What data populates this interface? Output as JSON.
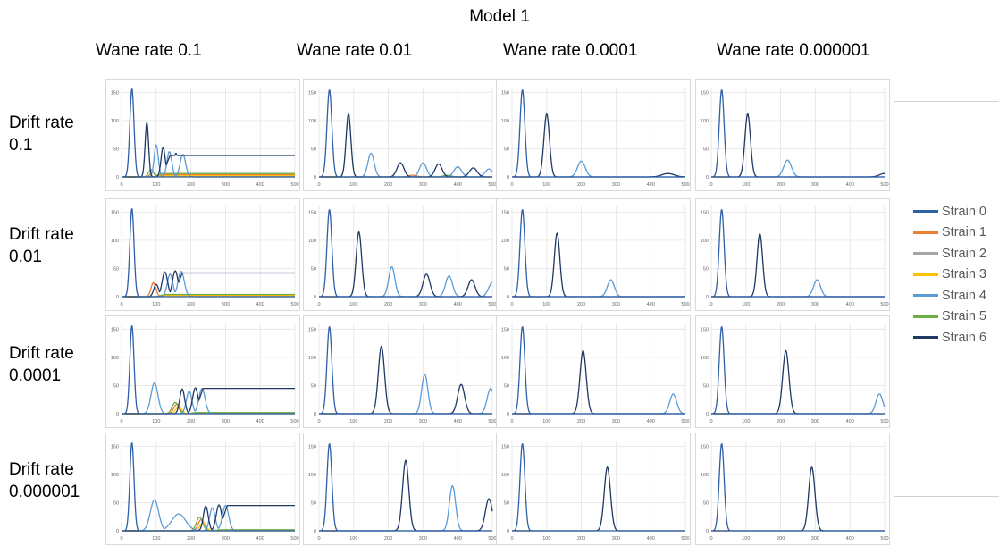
{
  "figure": {
    "title": "Model 1",
    "column_headers": [
      "Wane rate 0.1",
      "Wane rate 0.01",
      "Wane rate 0.0001",
      "Wane rate 0.000001"
    ],
    "row_headers": [
      [
        "Drift rate",
        "0.1"
      ],
      [
        "Drift rate",
        "0.01"
      ],
      [
        "Drift rate",
        "0.0001"
      ],
      [
        "Drift rate",
        "0.000001"
      ]
    ]
  },
  "legend": {
    "entries": [
      {
        "label": "Strain 0",
        "color": "#2e5fa8"
      },
      {
        "label": "Strain 1",
        "color": "#ed7d31"
      },
      {
        "label": "Strain 2",
        "color": "#a5a5a5"
      },
      {
        "label": "Strain 3",
        "color": "#ffc000"
      },
      {
        "label": "Strain 4",
        "color": "#5b9bd5"
      },
      {
        "label": "Strain 5",
        "color": "#70ad47"
      },
      {
        "label": "Strain 6",
        "color": "#1f3864"
      }
    ]
  },
  "chart_data": {
    "type": "line",
    "xlim": [
      0,
      500
    ],
    "ylim": [
      0,
      160
    ],
    "xticks": [
      0,
      100,
      200,
      300,
      400,
      500
    ],
    "yticks": [
      0,
      50,
      100,
      150
    ],
    "grid": true,
    "legend_position": "right",
    "series_names": [
      "Strain 0",
      "Strain 1",
      "Strain 2",
      "Strain 3",
      "Strain 4",
      "Strain 5",
      "Strain 6"
    ],
    "panels": [
      {
        "drift": "0.1",
        "wane": "0.1",
        "peaks": [
          {
            "s": 0,
            "x": 30,
            "h": 157,
            "w": 6
          },
          {
            "s": 6,
            "x": 73,
            "h": 97,
            "w": 5
          },
          {
            "s": 4,
            "x": 100,
            "h": 57,
            "w": 6
          },
          {
            "s": 6,
            "x": 120,
            "h": 53,
            "w": 6
          },
          {
            "s": 4,
            "x": 138,
            "h": 45,
            "w": 7
          },
          {
            "s": 6,
            "x": 157,
            "h": 42,
            "w": 7
          },
          {
            "s": 4,
            "x": 177,
            "h": 40,
            "w": 8
          },
          {
            "s": 5,
            "x": 85,
            "h": 13,
            "w": 7
          },
          {
            "s": 1,
            "x": 90,
            "h": 9,
            "w": 7
          }
        ],
        "plateaus": [
          {
            "s": 6,
            "x0": 115,
            "x1": 500,
            "v": 38
          },
          {
            "s": 5,
            "x0": 90,
            "x1": 500,
            "v": 6
          },
          {
            "s": 1,
            "x0": 95,
            "x1": 500,
            "v": 4
          },
          {
            "s": 3,
            "x0": 95,
            "x1": 500,
            "v": 2
          },
          {
            "s": 2,
            "x0": 95,
            "x1": 500,
            "v": 1.5
          }
        ]
      },
      {
        "drift": "0.1",
        "wane": "0.01",
        "peaks": [
          {
            "s": 0,
            "x": 30,
            "h": 155,
            "w": 7
          },
          {
            "s": 6,
            "x": 85,
            "h": 112,
            "w": 7
          },
          {
            "s": 4,
            "x": 150,
            "h": 42,
            "w": 9
          },
          {
            "s": 6,
            "x": 235,
            "h": 25,
            "w": 10
          },
          {
            "s": 4,
            "x": 300,
            "h": 25,
            "w": 10
          },
          {
            "s": 6,
            "x": 345,
            "h": 23,
            "w": 10
          },
          {
            "s": 4,
            "x": 400,
            "h": 18,
            "w": 11
          },
          {
            "s": 6,
            "x": 445,
            "h": 16,
            "w": 11
          },
          {
            "s": 4,
            "x": 490,
            "h": 14,
            "w": 11
          },
          {
            "s": 1,
            "x": 270,
            "h": 3,
            "w": 12
          },
          {
            "s": 5,
            "x": 370,
            "h": 3,
            "w": 12
          }
        ],
        "plateaus": []
      },
      {
        "drift": "0.1",
        "wane": "0.0001",
        "peaks": [
          {
            "s": 0,
            "x": 30,
            "h": 155,
            "w": 7
          },
          {
            "s": 6,
            "x": 100,
            "h": 112,
            "w": 8
          },
          {
            "s": 4,
            "x": 200,
            "h": 28,
            "w": 11
          },
          {
            "s": 6,
            "x": 450,
            "h": 6,
            "w": 18
          }
        ],
        "plateaus": []
      },
      {
        "drift": "0.1",
        "wane": "0.000001",
        "peaks": [
          {
            "s": 0,
            "x": 30,
            "h": 155,
            "w": 7
          },
          {
            "s": 6,
            "x": 105,
            "h": 112,
            "w": 8
          },
          {
            "s": 4,
            "x": 220,
            "h": 30,
            "w": 11
          },
          {
            "s": 6,
            "x": 500,
            "h": 6,
            "w": 15
          }
        ],
        "plateaus": []
      },
      {
        "drift": "0.01",
        "wane": "0.1",
        "peaks": [
          {
            "s": 0,
            "x": 30,
            "h": 157,
            "w": 6
          },
          {
            "s": 6,
            "x": 100,
            "h": 22,
            "w": 7
          },
          {
            "s": 1,
            "x": 92,
            "h": 25,
            "w": 7
          },
          {
            "s": 6,
            "x": 125,
            "h": 44,
            "w": 8
          },
          {
            "s": 4,
            "x": 140,
            "h": 40,
            "w": 8
          },
          {
            "s": 6,
            "x": 155,
            "h": 46,
            "w": 8
          },
          {
            "s": 4,
            "x": 172,
            "h": 45,
            "w": 9
          }
        ],
        "plateaus": [
          {
            "s": 6,
            "x0": 150,
            "x1": 500,
            "v": 42
          },
          {
            "s": 5,
            "x0": 100,
            "x1": 500,
            "v": 4
          },
          {
            "s": 1,
            "x0": 100,
            "x1": 500,
            "v": 3
          },
          {
            "s": 3,
            "x0": 100,
            "x1": 500,
            "v": 2
          }
        ]
      },
      {
        "drift": "0.01",
        "wane": "0.01",
        "peaks": [
          {
            "s": 0,
            "x": 30,
            "h": 155,
            "w": 7
          },
          {
            "s": 6,
            "x": 115,
            "h": 115,
            "w": 8
          },
          {
            "s": 4,
            "x": 210,
            "h": 53,
            "w": 9
          },
          {
            "s": 6,
            "x": 310,
            "h": 40,
            "w": 10
          },
          {
            "s": 4,
            "x": 375,
            "h": 37,
            "w": 10
          },
          {
            "s": 6,
            "x": 440,
            "h": 30,
            "w": 10
          },
          {
            "s": 4,
            "x": 500,
            "h": 25,
            "w": 11
          }
        ],
        "plateaus": []
      },
      {
        "drift": "0.01",
        "wane": "0.0001",
        "peaks": [
          {
            "s": 0,
            "x": 30,
            "h": 155,
            "w": 7
          },
          {
            "s": 6,
            "x": 130,
            "h": 113,
            "w": 8
          },
          {
            "s": 4,
            "x": 285,
            "h": 30,
            "w": 10
          }
        ],
        "plateaus": []
      },
      {
        "drift": "0.01",
        "wane": "0.000001",
        "peaks": [
          {
            "s": 0,
            "x": 30,
            "h": 155,
            "w": 7
          },
          {
            "s": 6,
            "x": 140,
            "h": 112,
            "w": 8
          },
          {
            "s": 4,
            "x": 305,
            "h": 30,
            "w": 10
          }
        ],
        "plateaus": []
      },
      {
        "drift": "0.0001",
        "wane": "0.1",
        "peaks": [
          {
            "s": 0,
            "x": 30,
            "h": 157,
            "w": 6
          },
          {
            "s": 4,
            "x": 95,
            "h": 55,
            "w": 10
          },
          {
            "s": 5,
            "x": 155,
            "h": 20,
            "w": 9
          },
          {
            "s": 1,
            "x": 160,
            "h": 17,
            "w": 9
          },
          {
            "s": 3,
            "x": 165,
            "h": 12,
            "w": 9
          },
          {
            "s": 6,
            "x": 175,
            "h": 44,
            "w": 7
          },
          {
            "s": 4,
            "x": 195,
            "h": 40,
            "w": 8
          },
          {
            "s": 6,
            "x": 213,
            "h": 46,
            "w": 8
          },
          {
            "s": 4,
            "x": 232,
            "h": 45,
            "w": 9
          }
        ],
        "plateaus": [
          {
            "s": 6,
            "x0": 210,
            "x1": 500,
            "v": 45
          },
          {
            "s": 5,
            "x0": 190,
            "x1": 500,
            "v": 2
          },
          {
            "s": 1,
            "x0": 190,
            "x1": 500,
            "v": 1.5
          }
        ]
      },
      {
        "drift": "0.0001",
        "wane": "0.01",
        "peaks": [
          {
            "s": 0,
            "x": 30,
            "h": 155,
            "w": 7
          },
          {
            "s": 6,
            "x": 180,
            "h": 120,
            "w": 9
          },
          {
            "s": 4,
            "x": 305,
            "h": 70,
            "w": 9
          },
          {
            "s": 6,
            "x": 410,
            "h": 52,
            "w": 10
          },
          {
            "s": 4,
            "x": 495,
            "h": 45,
            "w": 10
          }
        ],
        "plateaus": []
      },
      {
        "drift": "0.0001",
        "wane": "0.0001",
        "peaks": [
          {
            "s": 0,
            "x": 30,
            "h": 155,
            "w": 7
          },
          {
            "s": 6,
            "x": 205,
            "h": 112,
            "w": 9
          },
          {
            "s": 4,
            "x": 465,
            "h": 35,
            "w": 10
          }
        ],
        "plateaus": []
      },
      {
        "drift": "0.0001",
        "wane": "0.000001",
        "peaks": [
          {
            "s": 0,
            "x": 30,
            "h": 155,
            "w": 7
          },
          {
            "s": 6,
            "x": 215,
            "h": 112,
            "w": 9
          },
          {
            "s": 4,
            "x": 485,
            "h": 35,
            "w": 10
          }
        ],
        "plateaus": []
      },
      {
        "drift": "0.000001",
        "wane": "0.1",
        "peaks": [
          {
            "s": 0,
            "x": 30,
            "h": 157,
            "w": 6
          },
          {
            "s": 4,
            "x": 95,
            "h": 55,
            "w": 12
          },
          {
            "s": 4,
            "x": 165,
            "h": 30,
            "w": 20
          },
          {
            "s": 5,
            "x": 225,
            "h": 24,
            "w": 9
          },
          {
            "s": 1,
            "x": 230,
            "h": 20,
            "w": 9
          },
          {
            "s": 3,
            "x": 235,
            "h": 14,
            "w": 9
          },
          {
            "s": 6,
            "x": 243,
            "h": 44,
            "w": 7
          },
          {
            "s": 4,
            "x": 262,
            "h": 41,
            "w": 8
          },
          {
            "s": 6,
            "x": 281,
            "h": 46,
            "w": 8
          },
          {
            "s": 4,
            "x": 300,
            "h": 45,
            "w": 9
          }
        ],
        "plateaus": [
          {
            "s": 6,
            "x0": 280,
            "x1": 500,
            "v": 45
          },
          {
            "s": 5,
            "x0": 260,
            "x1": 500,
            "v": 2
          }
        ]
      },
      {
        "drift": "0.000001",
        "wane": "0.01",
        "peaks": [
          {
            "s": 0,
            "x": 30,
            "h": 155,
            "w": 7
          },
          {
            "s": 6,
            "x": 250,
            "h": 125,
            "w": 9
          },
          {
            "s": 4,
            "x": 385,
            "h": 80,
            "w": 9
          },
          {
            "s": 6,
            "x": 490,
            "h": 57,
            "w": 10
          }
        ],
        "plateaus": []
      },
      {
        "drift": "0.000001",
        "wane": "0.0001",
        "peaks": [
          {
            "s": 0,
            "x": 30,
            "h": 155,
            "w": 7
          },
          {
            "s": 6,
            "x": 275,
            "h": 113,
            "w": 9
          }
        ],
        "plateaus": []
      },
      {
        "drift": "0.000001",
        "wane": "0.000001",
        "peaks": [
          {
            "s": 0,
            "x": 30,
            "h": 155,
            "w": 7
          },
          {
            "s": 6,
            "x": 290,
            "h": 113,
            "w": 9
          }
        ],
        "plateaus": []
      }
    ]
  }
}
